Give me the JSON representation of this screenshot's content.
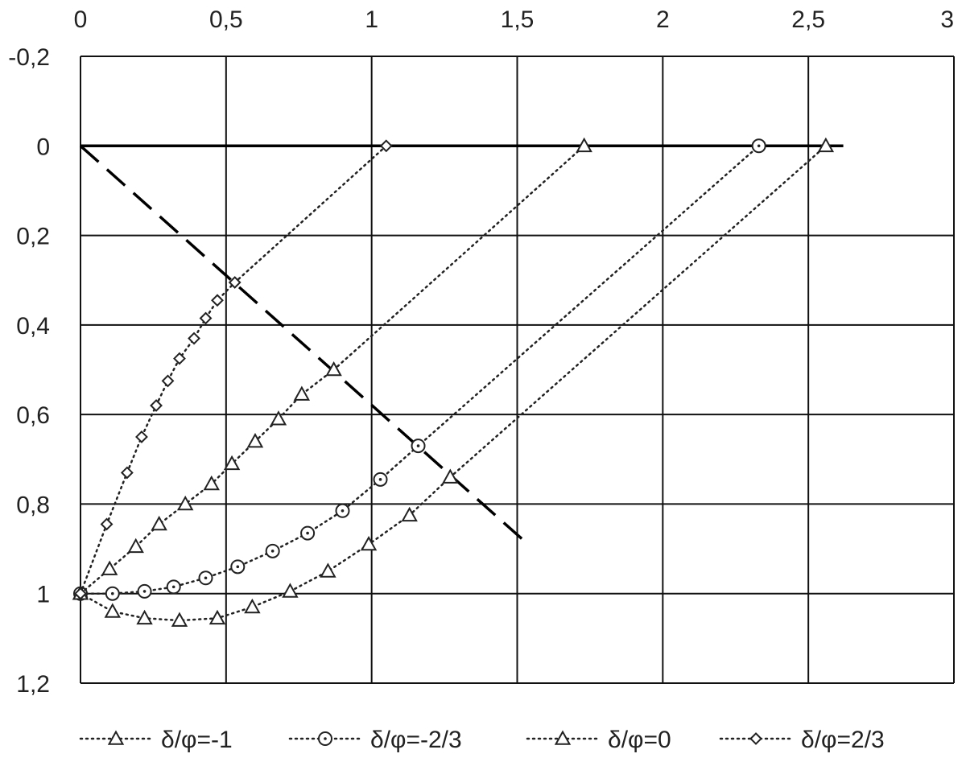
{
  "chart_data": {
    "type": "line",
    "x_ticks": [
      "0",
      "0,5",
      "1",
      "1,5",
      "2",
      "2,5",
      "3"
    ],
    "y_ticks": [
      "-0,2",
      "0",
      "0,2",
      "0,4",
      "0,6",
      "0,8",
      "1",
      "1,2"
    ],
    "xlim": [
      0,
      3
    ],
    "ylim": [
      -0.2,
      1.2
    ],
    "y_inverted": true,
    "x_axis_position": "top",
    "grid": true,
    "legend_position": "bottom",
    "series": [
      {
        "name": "δ/φ=-1",
        "marker": "triangle",
        "line_style": "dotted",
        "x": [
          0,
          0.11,
          0.22,
          0.34,
          0.47,
          0.59,
          0.72,
          0.85,
          0.99,
          1.13,
          1.27,
          2.56
        ],
        "y": [
          1.0,
          1.04,
          1.055,
          1.06,
          1.055,
          1.03,
          0.995,
          0.95,
          0.89,
          0.825,
          0.74,
          0.0
        ]
      },
      {
        "name": "δ/φ=-2/3",
        "marker": "circle",
        "line_style": "dotted",
        "x": [
          0,
          0.11,
          0.22,
          0.32,
          0.43,
          0.54,
          0.66,
          0.78,
          0.9,
          1.03,
          1.16,
          2.33
        ],
        "y": [
          1.0,
          1.0,
          0.995,
          0.985,
          0.965,
          0.94,
          0.905,
          0.865,
          0.815,
          0.745,
          0.67,
          0.0
        ]
      },
      {
        "name": "δ/φ=0",
        "marker": "triangle",
        "line_style": "dotted",
        "x": [
          0,
          0.1,
          0.19,
          0.27,
          0.36,
          0.45,
          0.52,
          0.6,
          0.68,
          0.76,
          0.87,
          1.73
        ],
        "y": [
          1.0,
          0.945,
          0.895,
          0.845,
          0.8,
          0.755,
          0.71,
          0.66,
          0.61,
          0.555,
          0.5,
          0.0
        ]
      },
      {
        "name": "δ/φ=2/3",
        "marker": "diamond",
        "line_style": "dotted",
        "x": [
          0,
          0.09,
          0.16,
          0.21,
          0.26,
          0.3,
          0.34,
          0.39,
          0.43,
          0.47,
          0.53,
          1.05
        ],
        "y": [
          1.0,
          0.845,
          0.73,
          0.65,
          0.58,
          0.525,
          0.475,
          0.43,
          0.385,
          0.345,
          0.305,
          0.0
        ]
      }
    ],
    "reference_lines": [
      {
        "style": "dashed",
        "x": [
          0,
          1.52
        ],
        "y": [
          0,
          0.88
        ]
      }
    ]
  }
}
